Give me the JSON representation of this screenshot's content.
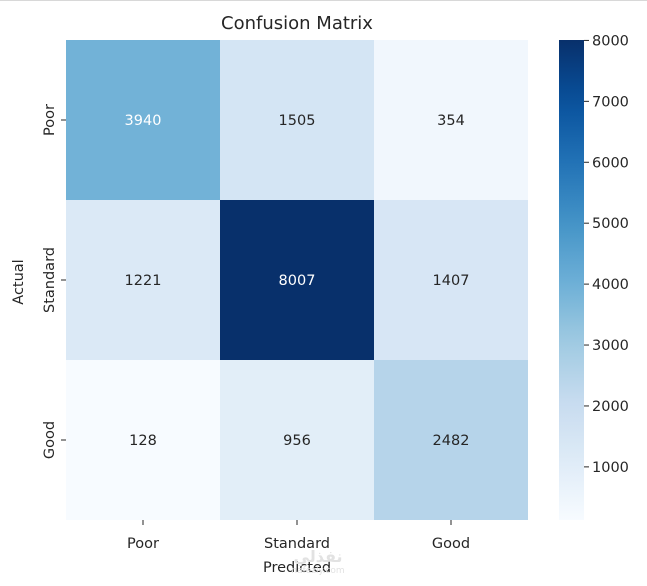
{
  "chart_data": {
    "type": "heatmap",
    "title": "Confusion Matrix",
    "xlabel": "Predicted",
    "ylabel": "Actual",
    "x_categories": [
      "Poor",
      "Standard",
      "Good"
    ],
    "y_categories": [
      "Poor",
      "Standard",
      "Good"
    ],
    "values": [
      [
        3940,
        1505,
        354
      ],
      [
        1221,
        8007,
        1407
      ],
      [
        128,
        956,
        2482
      ]
    ],
    "colormap": "Blues",
    "vmin": 128,
    "vmax": 8007,
    "colorbar_ticks": [
      1000,
      2000,
      3000,
      4000,
      5000,
      6000,
      7000,
      8000
    ],
    "colorbar_tick_labels": [
      "1000",
      "2000",
      "3000",
      "4000",
      "5000",
      "6000",
      "7000",
      "8000"
    ]
  },
  "watermark": {
    "line1": "نفذلي",
    "line2": "nafezly.com"
  }
}
